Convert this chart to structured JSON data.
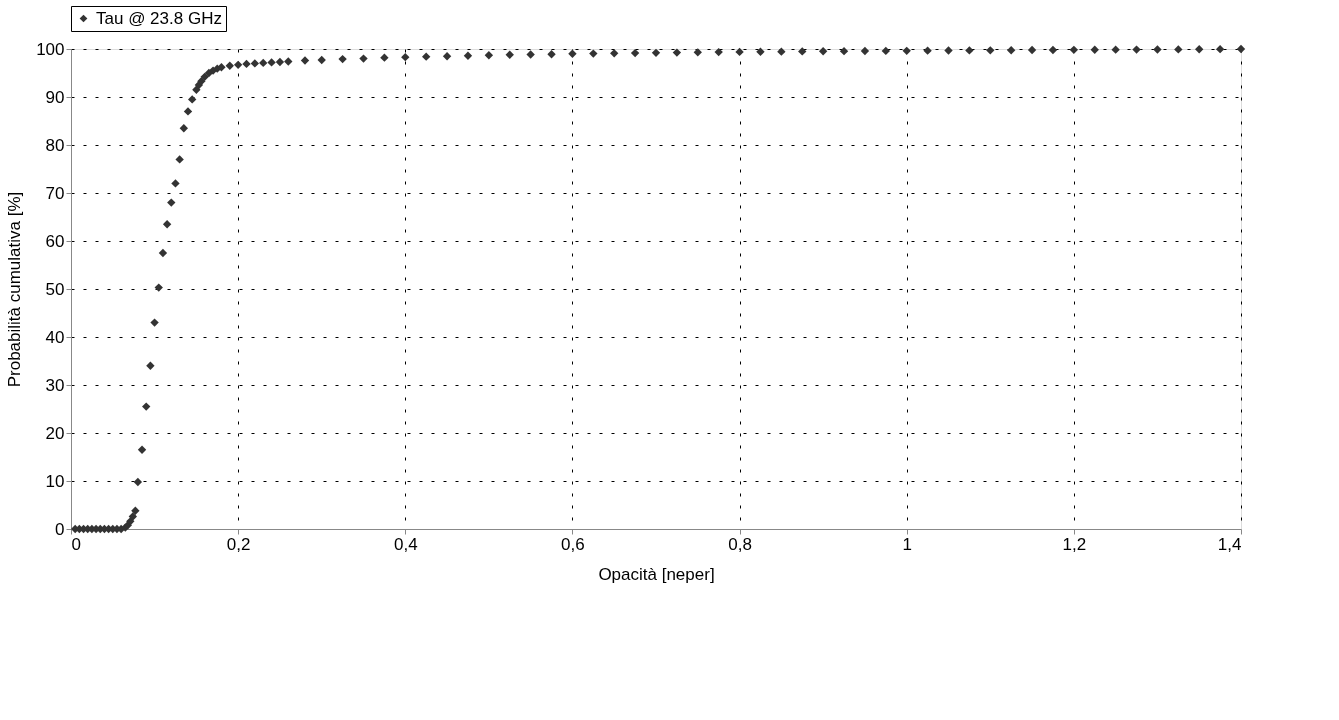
{
  "chart_data": {
    "type": "scatter",
    "xlabel": "Opacità [neper]",
    "ylabel": "Probabilità cumulativa [%]",
    "xlim": [
      0,
      1.4
    ],
    "ylim": [
      0,
      100
    ],
    "xticks": [
      0,
      {
        "value": 0.2,
        "label": "0,2"
      },
      {
        "value": 0.4,
        "label": "0,4"
      },
      {
        "value": 0.6,
        "label": "0,6"
      },
      {
        "value": 0.8,
        "label": "0,8"
      },
      1,
      {
        "value": 1.2,
        "label": "1,2"
      },
      {
        "value": 1.4,
        "label": "1,4"
      }
    ],
    "yticks": [
      0,
      10,
      20,
      30,
      40,
      50,
      60,
      70,
      80,
      90,
      100
    ],
    "grid": true,
    "legend": "top",
    "marker": "diamond",
    "series": [
      {
        "name": "Tau @ 23.8 GHz",
        "color": "#333333",
        "x": [
          0.005,
          0.01,
          0.015,
          0.02,
          0.025,
          0.03,
          0.035,
          0.04,
          0.045,
          0.05,
          0.055,
          0.06,
          0.065,
          0.068,
          0.071,
          0.074,
          0.077,
          0.08,
          0.085,
          0.09,
          0.095,
          0.1,
          0.105,
          0.11,
          0.115,
          0.12,
          0.125,
          0.13,
          0.135,
          0.14,
          0.145,
          0.15,
          0.153,
          0.156,
          0.16,
          0.165,
          0.17,
          0.175,
          0.18,
          0.19,
          0.2,
          0.21,
          0.22,
          0.23,
          0.24,
          0.25,
          0.26,
          0.28,
          0.3,
          0.325,
          0.35,
          0.375,
          0.4,
          0.425,
          0.45,
          0.475,
          0.5,
          0.525,
          0.55,
          0.575,
          0.6,
          0.625,
          0.65,
          0.675,
          0.7,
          0.725,
          0.75,
          0.775,
          0.8,
          0.825,
          0.85,
          0.875,
          0.9,
          0.925,
          0.95,
          0.975,
          1.0,
          1.025,
          1.05,
          1.075,
          1.1,
          1.125,
          1.15,
          1.175,
          1.2,
          1.225,
          1.25,
          1.275,
          1.3,
          1.325,
          1.35,
          1.375,
          1.4
        ],
        "values": [
          0,
          0,
          0,
          0,
          0,
          0,
          0,
          0,
          0,
          0,
          0,
          0,
          0.3,
          0.8,
          1.6,
          2.6,
          3.8,
          9.8,
          16.5,
          25.5,
          34,
          43,
          50.3,
          57.5,
          63.5,
          68,
          72,
          77,
          83.5,
          87,
          89.5,
          91.5,
          92.5,
          93.3,
          94.2,
          95,
          95.5,
          95.9,
          96.2,
          96.5,
          96.7,
          96.9,
          97.0,
          97.1,
          97.2,
          97.3,
          97.4,
          97.6,
          97.7,
          97.9,
          98.0,
          98.2,
          98.3,
          98.4,
          98.5,
          98.6,
          98.7,
          98.8,
          98.85,
          98.9,
          99.0,
          99.05,
          99.1,
          99.15,
          99.2,
          99.25,
          99.3,
          99.35,
          99.4,
          99.42,
          99.45,
          99.5,
          99.52,
          99.55,
          99.58,
          99.6,
          99.62,
          99.65,
          99.68,
          99.7,
          99.72,
          99.75,
          99.78,
          99.8,
          99.82,
          99.84,
          99.86,
          99.88,
          99.9,
          99.92,
          99.95,
          99.97,
          100
        ]
      }
    ]
  }
}
